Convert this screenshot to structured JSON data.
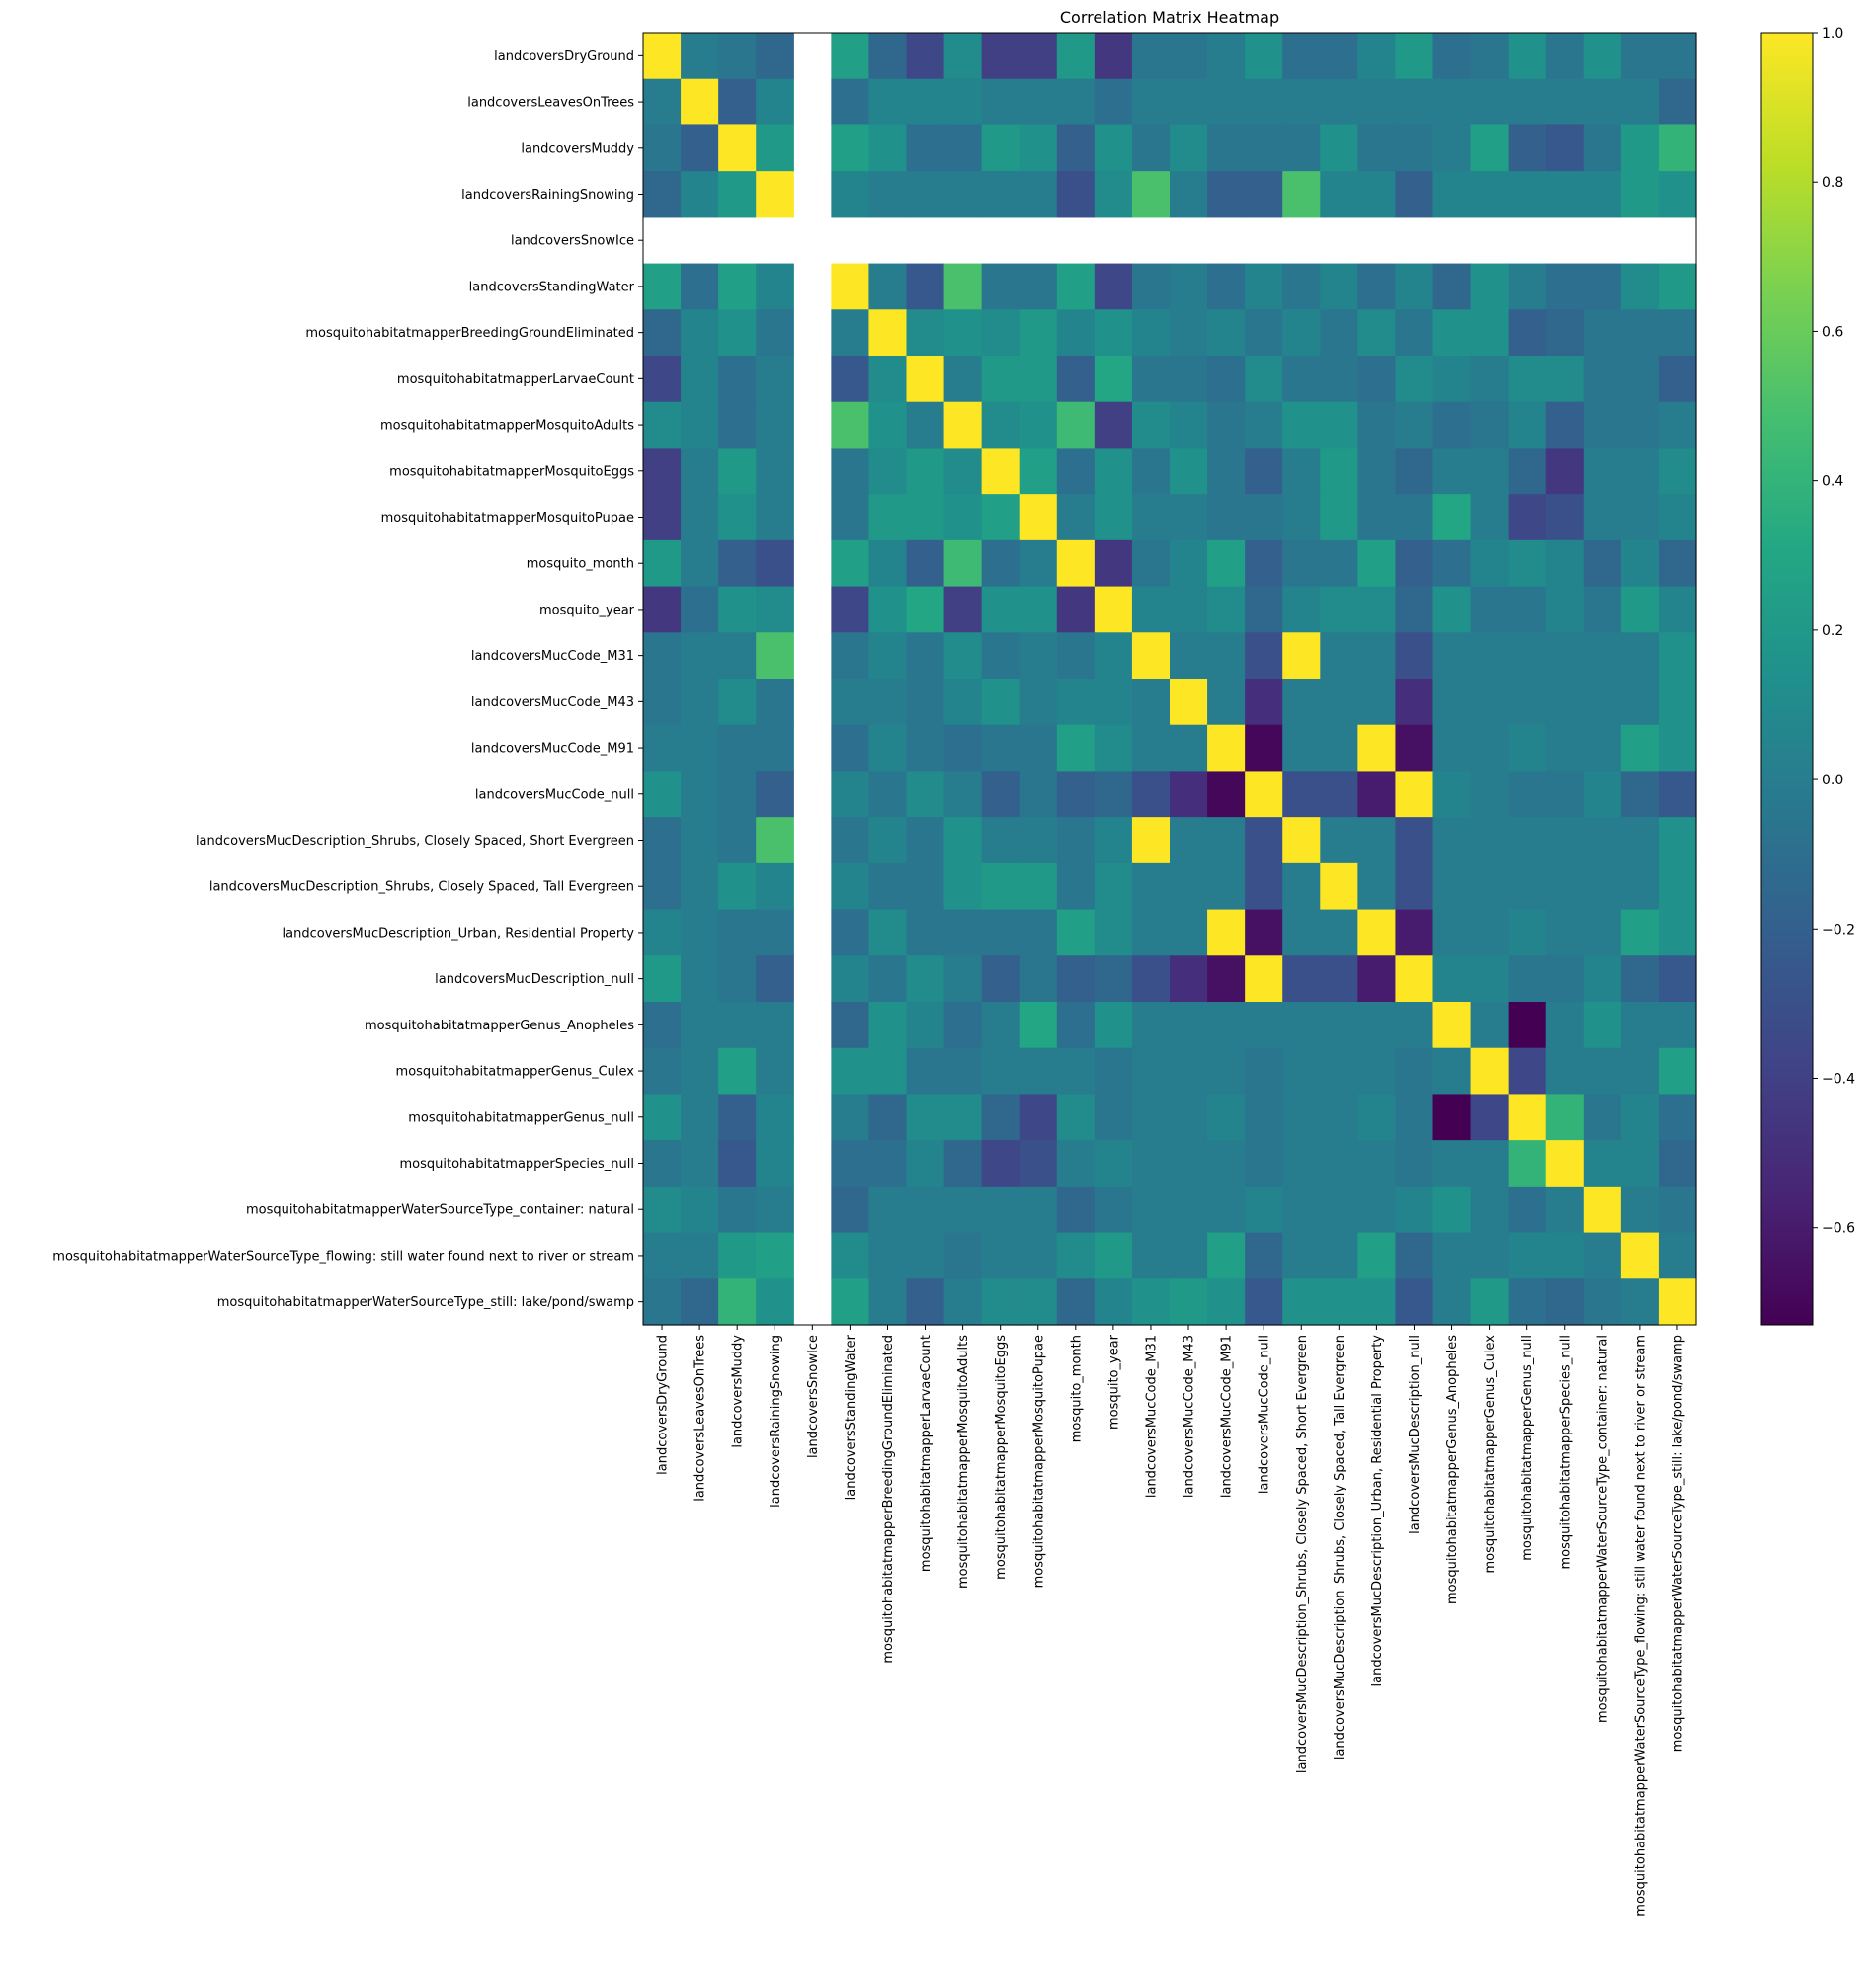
{
  "chart_data": {
    "type": "heatmap",
    "title": "Correlation Matrix Heatmap",
    "xlabel": "",
    "ylabel": "",
    "labels": [
      "landcoversDryGround",
      "landcoversLeavesOnTrees",
      "landcoversMuddy",
      "landcoversRainingSnowing",
      "landcoversSnowIce",
      "landcoversStandingWater",
      "mosquitohabitatmapperBreedingGroundEliminated",
      "mosquitohabitatmapperLarvaeCount",
      "mosquitohabitatmapperMosquitoAdults",
      "mosquitohabitatmapperMosquitoEggs",
      "mosquitohabitatmapperMosquitoPupae",
      "mosquito_month",
      "mosquito_year",
      "landcoversMucCode_M31",
      "landcoversMucCode_M43",
      "landcoversMucCode_M91",
      "landcoversMucCode_null",
      "landcoversMucDescription_Shrubs, Closely Spaced, Short Evergreen",
      "landcoversMucDescription_Shrubs, Closely Spaced, Tall Evergreen",
      "landcoversMucDescription_Urban, Residential Property",
      "landcoversMucDescription_null",
      "mosquitohabitatmapperGenus_Anopheles",
      "mosquitohabitatmapperGenus_Culex",
      "mosquitohabitatmapperGenus_null",
      "mosquitohabitatmapperSpecies_null",
      "mosquitohabitatmapperWaterSourceType_container: natural",
      "mosquitohabitatmapperWaterSourceType_flowing: still water found next to river or stream",
      "mosquitohabitatmapperWaterSourceType_still: lake/pond/swamp"
    ],
    "matrix": [
      [
        1.0,
        0.0,
        -0.05,
        -0.15,
        null,
        0.25,
        -0.15,
        -0.35,
        0.1,
        -0.4,
        -0.4,
        0.2,
        -0.45,
        -0.05,
        -0.05,
        0.0,
        0.15,
        -0.1,
        -0.1,
        0.05,
        0.2,
        -0.1,
        -0.05,
        0.15,
        -0.05,
        0.15,
        -0.05,
        -0.05
      ],
      [
        0.0,
        1.0,
        -0.2,
        0.05,
        null,
        -0.1,
        0.05,
        0.05,
        0.05,
        0.0,
        0.0,
        0.0,
        -0.1,
        0.0,
        0.0,
        0.0,
        0.0,
        0.0,
        0.0,
        0.0,
        0.0,
        0.0,
        0.0,
        0.0,
        0.0,
        0.0,
        0.0,
        -0.15
      ],
      [
        -0.05,
        -0.2,
        1.0,
        0.2,
        null,
        0.25,
        0.15,
        -0.1,
        -0.1,
        0.2,
        0.15,
        -0.2,
        0.15,
        -0.05,
        0.1,
        -0.05,
        -0.05,
        -0.05,
        0.15,
        -0.05,
        -0.05,
        0.0,
        0.25,
        -0.2,
        -0.25,
        -0.05,
        0.2,
        0.4
      ],
      [
        -0.15,
        0.05,
        0.2,
        1.0,
        null,
        0.05,
        0.0,
        0.0,
        0.0,
        0.0,
        0.0,
        -0.3,
        0.1,
        0.5,
        0.0,
        -0.2,
        -0.2,
        0.5,
        0.05,
        0.05,
        -0.2,
        0.05,
        0.05,
        0.05,
        0.05,
        0.05,
        0.2,
        0.15
      ],
      [
        null,
        null,
        null,
        null,
        null,
        null,
        null,
        null,
        null,
        null,
        null,
        null,
        null,
        null,
        null,
        null,
        null,
        null,
        null,
        null,
        null,
        null,
        null,
        null,
        null,
        null,
        null,
        null
      ],
      [
        0.25,
        -0.1,
        0.25,
        0.05,
        null,
        1.0,
        0.0,
        -0.25,
        0.5,
        -0.05,
        -0.05,
        0.25,
        -0.35,
        -0.05,
        0.0,
        -0.1,
        0.05,
        -0.05,
        0.05,
        -0.1,
        0.05,
        -0.15,
        0.15,
        0.0,
        -0.1,
        -0.1,
        0.1,
        0.2
      ],
      [
        -0.15,
        0.05,
        0.15,
        -0.05,
        null,
        0.0,
        1.0,
        0.1,
        0.15,
        0.1,
        0.2,
        0.05,
        0.15,
        0.05,
        0.0,
        0.05,
        -0.05,
        0.05,
        -0.05,
        0.1,
        -0.05,
        0.15,
        0.15,
        -0.2,
        -0.15,
        -0.05,
        -0.05,
        -0.05
      ],
      [
        -0.35,
        0.05,
        -0.1,
        0.0,
        null,
        -0.25,
        0.1,
        1.0,
        0.0,
        0.2,
        0.2,
        -0.2,
        0.3,
        -0.05,
        -0.05,
        -0.1,
        0.1,
        -0.05,
        -0.05,
        -0.1,
        0.1,
        0.05,
        0.0,
        0.1,
        0.1,
        -0.05,
        -0.05,
        -0.2
      ],
      [
        0.1,
        0.05,
        -0.1,
        0.0,
        null,
        0.5,
        0.15,
        0.0,
        1.0,
        0.1,
        0.15,
        0.45,
        -0.4,
        0.1,
        0.05,
        -0.05,
        0.0,
        0.15,
        0.15,
        -0.05,
        0.0,
        -0.1,
        -0.05,
        0.05,
        -0.2,
        -0.05,
        -0.05,
        0.0
      ],
      [
        -0.4,
        0.0,
        0.2,
        0.0,
        null,
        -0.05,
        0.1,
        0.2,
        0.1,
        1.0,
        0.25,
        -0.1,
        0.15,
        -0.05,
        0.15,
        -0.05,
        -0.2,
        0.0,
        0.2,
        -0.05,
        -0.15,
        0.0,
        0.0,
        -0.15,
        -0.45,
        0.0,
        0.0,
        0.1
      ],
      [
        -0.4,
        0.0,
        0.15,
        0.0,
        null,
        -0.05,
        0.2,
        0.2,
        0.15,
        0.25,
        1.0,
        0.0,
        0.15,
        0.0,
        0.0,
        -0.05,
        -0.05,
        0.0,
        0.2,
        -0.05,
        -0.05,
        0.3,
        0.0,
        -0.35,
        -0.3,
        0.0,
        0.0,
        0.05
      ],
      [
        0.2,
        0.0,
        -0.2,
        -0.3,
        null,
        0.25,
        0.05,
        -0.2,
        0.45,
        -0.1,
        0.0,
        1.0,
        -0.45,
        -0.05,
        0.05,
        0.25,
        -0.2,
        -0.05,
        -0.05,
        0.25,
        -0.2,
        -0.1,
        0.05,
        0.1,
        0.05,
        -0.15,
        0.05,
        -0.15
      ],
      [
        -0.45,
        -0.1,
        0.15,
        0.1,
        null,
        -0.35,
        0.15,
        0.3,
        -0.4,
        0.15,
        0.15,
        -0.45,
        1.0,
        0.05,
        0.05,
        0.1,
        -0.15,
        0.05,
        0.1,
        0.1,
        -0.15,
        0.15,
        -0.05,
        -0.05,
        0.05,
        -0.05,
        0.2,
        0.05
      ],
      [
        -0.05,
        0.0,
        0.0,
        0.5,
        null,
        -0.05,
        0.05,
        -0.05,
        0.1,
        -0.05,
        0.0,
        -0.05,
        0.05,
        1.0,
        0.0,
        0.0,
        -0.3,
        1.0,
        0.0,
        0.0,
        -0.3,
        0.0,
        0.0,
        0.0,
        0.0,
        0.0,
        0.0,
        0.15
      ],
      [
        -0.05,
        0.0,
        0.1,
        -0.05,
        null,
        0.0,
        0.0,
        -0.05,
        0.05,
        0.15,
        0.0,
        0.05,
        0.05,
        0.0,
        1.0,
        0.0,
        -0.5,
        0.0,
        0.0,
        0.0,
        -0.5,
        0.0,
        0.0,
        0.0,
        0.0,
        0.0,
        0.0,
        0.15
      ],
      [
        0.0,
        0.0,
        -0.05,
        -0.05,
        null,
        -0.1,
        0.05,
        -0.05,
        -0.1,
        -0.05,
        -0.05,
        0.25,
        0.1,
        0.0,
        0.0,
        1.0,
        -0.7,
        0.0,
        0.0,
        1.0,
        -0.65,
        0.0,
        0.0,
        0.05,
        0.0,
        0.0,
        0.25,
        0.15
      ],
      [
        0.15,
        0.0,
        -0.05,
        -0.2,
        null,
        0.05,
        -0.05,
        0.1,
        0.0,
        -0.2,
        -0.05,
        -0.2,
        -0.15,
        -0.3,
        -0.5,
        -0.7,
        1.0,
        -0.3,
        -0.3,
        -0.6,
        1.0,
        0.05,
        0.0,
        -0.05,
        -0.05,
        0.05,
        -0.15,
        -0.25
      ],
      [
        -0.1,
        0.0,
        -0.05,
        0.5,
        null,
        -0.05,
        0.05,
        -0.05,
        0.15,
        0.0,
        0.0,
        -0.05,
        0.05,
        1.0,
        0.0,
        0.0,
        -0.3,
        1.0,
        0.0,
        0.0,
        -0.3,
        0.0,
        0.0,
        0.0,
        0.0,
        0.0,
        0.0,
        0.15
      ],
      [
        -0.1,
        0.0,
        0.15,
        0.05,
        null,
        0.05,
        -0.05,
        -0.05,
        0.15,
        0.2,
        0.2,
        -0.05,
        0.1,
        0.0,
        0.0,
        0.0,
        -0.3,
        0.0,
        1.0,
        0.0,
        -0.3,
        0.0,
        0.0,
        0.0,
        0.0,
        0.0,
        0.0,
        0.15
      ],
      [
        0.05,
        0.0,
        -0.05,
        -0.05,
        null,
        -0.1,
        0.1,
        -0.05,
        -0.05,
        -0.05,
        -0.05,
        0.25,
        0.1,
        0.0,
        0.0,
        1.0,
        -0.65,
        0.0,
        0.0,
        1.0,
        -0.6,
        0.0,
        0.0,
        0.05,
        0.0,
        0.0,
        0.25,
        0.15
      ],
      [
        0.2,
        0.0,
        -0.05,
        -0.2,
        null,
        0.05,
        -0.05,
        0.1,
        0.0,
        -0.2,
        -0.05,
        -0.2,
        -0.15,
        -0.3,
        -0.5,
        -0.65,
        1.0,
        -0.3,
        -0.3,
        -0.6,
        1.0,
        0.05,
        0.05,
        -0.05,
        -0.05,
        0.05,
        -0.15,
        -0.25
      ],
      [
        -0.1,
        0.0,
        0.0,
        0.0,
        null,
        -0.15,
        0.15,
        0.05,
        -0.1,
        0.0,
        0.3,
        -0.1,
        0.15,
        0.0,
        0.0,
        0.0,
        0.0,
        0.0,
        0.0,
        0.0,
        0.0,
        1.0,
        0.0,
        -0.73,
        0.0,
        0.15,
        0.0,
        0.0
      ],
      [
        -0.05,
        0.0,
        0.25,
        0.0,
        null,
        0.15,
        0.15,
        -0.05,
        -0.05,
        0.0,
        0.0,
        0.0,
        -0.05,
        0.0,
        0.0,
        0.0,
        -0.05,
        0.0,
        0.0,
        0.0,
        -0.05,
        0.0,
        1.0,
        -0.35,
        0.0,
        0.0,
        0.0,
        0.25
      ],
      [
        0.15,
        0.0,
        -0.2,
        0.05,
        null,
        0.0,
        -0.15,
        0.1,
        0.1,
        -0.15,
        -0.35,
        0.1,
        -0.05,
        0.0,
        0.0,
        0.05,
        -0.05,
        0.0,
        0.0,
        0.05,
        -0.05,
        -0.73,
        -0.35,
        1.0,
        0.4,
        -0.05,
        0.05,
        -0.1
      ],
      [
        -0.05,
        0.0,
        -0.25,
        0.05,
        null,
        -0.1,
        -0.1,
        0.05,
        -0.15,
        -0.35,
        -0.3,
        0.0,
        0.05,
        0.0,
        0.0,
        0.0,
        -0.05,
        0.0,
        0.0,
        0.0,
        -0.05,
        0.0,
        0.0,
        0.4,
        1.0,
        0.05,
        0.05,
        -0.15
      ],
      [
        0.1,
        0.05,
        -0.05,
        0.0,
        null,
        -0.15,
        0.0,
        0.0,
        0.0,
        0.0,
        0.0,
        -0.15,
        -0.05,
        0.0,
        0.0,
        0.0,
        0.05,
        0.0,
        0.0,
        0.0,
        0.05,
        0.15,
        0.0,
        -0.1,
        0.0,
        1.0,
        0.0,
        -0.05
      ],
      [
        0.0,
        0.0,
        0.2,
        0.25,
        null,
        0.1,
        0.0,
        0.0,
        -0.05,
        0.0,
        0.0,
        0.1,
        0.2,
        0.0,
        0.0,
        0.25,
        -0.15,
        0.0,
        0.0,
        0.25,
        -0.15,
        0.0,
        0.0,
        0.05,
        0.05,
        0.0,
        1.0,
        0.0
      ],
      [
        -0.05,
        -0.15,
        0.4,
        0.15,
        null,
        0.25,
        0.0,
        -0.2,
        0.0,
        0.1,
        0.1,
        -0.15,
        0.05,
        0.15,
        0.2,
        0.15,
        -0.25,
        0.15,
        0.15,
        0.15,
        -0.25,
        0.0,
        0.2,
        -0.1,
        -0.15,
        -0.05,
        0.0,
        1.0
      ]
    ],
    "colormap": "viridis",
    "colorbar": {
      "min": -0.73,
      "max": 1.0,
      "ticks": [
        1.0,
        0.8,
        0.6,
        0.4,
        0.2,
        0.0,
        -0.2,
        -0.4,
        -0.6
      ],
      "tick_labels": [
        "1.0",
        "0.8",
        "0.6",
        "0.4",
        "0.2",
        "0.0",
        "−0.2",
        "−0.4",
        "−0.6"
      ]
    },
    "grid": false
  }
}
